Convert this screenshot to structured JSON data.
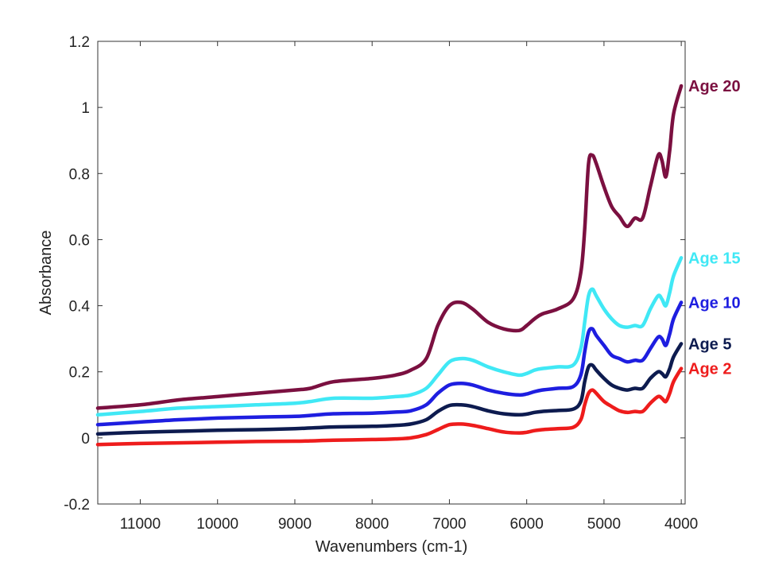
{
  "chart_data": {
    "type": "line",
    "title": "",
    "xlabel": "Wavenumbers (cm-1)",
    "ylabel": "Absorbance",
    "xlim": [
      11550,
      3950
    ],
    "ylim": [
      -0.2,
      1.2
    ],
    "x_reversed": true,
    "grid": false,
    "legend": "direct labels at right end of each line",
    "xticks": [
      11000,
      10000,
      9000,
      8000,
      7000,
      6000,
      5000,
      4000
    ],
    "yticks": [
      -0.2,
      0,
      0.2,
      0.4,
      0.6,
      0.8,
      1,
      1.2
    ],
    "xtick_labels": [
      "11000",
      "10000",
      "9000",
      "8000",
      "7000",
      "6000",
      "5000",
      "4000"
    ],
    "ytick_labels": [
      "-0.2",
      "0",
      "0.2",
      "0.4",
      "0.6",
      "0.8",
      "1",
      "1.2"
    ],
    "x": [
      11550,
      11000,
      10500,
      10000,
      9500,
      9000,
      8800,
      8500,
      8000,
      7700,
      7500,
      7300,
      7150,
      7000,
      6850,
      6700,
      6500,
      6300,
      6100,
      6000,
      5900,
      5800,
      5600,
      5400,
      5300,
      5250,
      5200,
      5150,
      5100,
      5000,
      4900,
      4800,
      4700,
      4600,
      4500,
      4400,
      4300,
      4250,
      4200,
      4150,
      4100,
      4000
    ],
    "series": [
      {
        "name": "Age 20",
        "color": "#7b1040",
        "values": [
          0.09,
          0.1,
          0.115,
          0.125,
          0.135,
          0.145,
          0.15,
          0.17,
          0.18,
          0.19,
          0.205,
          0.24,
          0.34,
          0.4,
          0.41,
          0.39,
          0.35,
          0.33,
          0.325,
          0.34,
          0.36,
          0.375,
          0.39,
          0.42,
          0.5,
          0.63,
          0.83,
          0.855,
          0.83,
          0.76,
          0.7,
          0.67,
          0.64,
          0.665,
          0.665,
          0.76,
          0.855,
          0.84,
          0.79,
          0.87,
          0.98,
          1.065
        ]
      },
      {
        "name": "Age 15",
        "color": "#40e8f5",
        "values": [
          0.07,
          0.08,
          0.09,
          0.095,
          0.1,
          0.105,
          0.11,
          0.12,
          0.12,
          0.125,
          0.13,
          0.15,
          0.19,
          0.23,
          0.24,
          0.235,
          0.215,
          0.2,
          0.19,
          0.195,
          0.205,
          0.21,
          0.215,
          0.22,
          0.27,
          0.35,
          0.43,
          0.45,
          0.43,
          0.39,
          0.36,
          0.34,
          0.335,
          0.34,
          0.34,
          0.39,
          0.43,
          0.42,
          0.4,
          0.44,
          0.49,
          0.545
        ]
      },
      {
        "name": "Age 10",
        "color": "#1e1ee0",
        "values": [
          0.04,
          0.048,
          0.055,
          0.06,
          0.063,
          0.065,
          0.068,
          0.073,
          0.075,
          0.078,
          0.082,
          0.1,
          0.135,
          0.16,
          0.165,
          0.16,
          0.145,
          0.135,
          0.13,
          0.133,
          0.14,
          0.145,
          0.15,
          0.155,
          0.19,
          0.26,
          0.32,
          0.33,
          0.31,
          0.28,
          0.25,
          0.24,
          0.23,
          0.235,
          0.235,
          0.27,
          0.305,
          0.3,
          0.28,
          0.315,
          0.36,
          0.41
        ]
      },
      {
        "name": "Age 5",
        "color": "#0d1b4f",
        "values": [
          0.012,
          0.017,
          0.02,
          0.023,
          0.025,
          0.028,
          0.03,
          0.033,
          0.035,
          0.038,
          0.042,
          0.055,
          0.08,
          0.098,
          0.1,
          0.095,
          0.082,
          0.073,
          0.07,
          0.072,
          0.077,
          0.08,
          0.083,
          0.087,
          0.11,
          0.17,
          0.215,
          0.22,
          0.205,
          0.18,
          0.16,
          0.15,
          0.145,
          0.15,
          0.15,
          0.18,
          0.2,
          0.195,
          0.185,
          0.21,
          0.245,
          0.285
        ]
      },
      {
        "name": "Age 2",
        "color": "#ee1c1c",
        "values": [
          -0.02,
          -0.017,
          -0.015,
          -0.013,
          -0.011,
          -0.01,
          -0.009,
          -0.007,
          -0.005,
          -0.003,
          0.0,
          0.01,
          0.025,
          0.04,
          0.042,
          0.038,
          0.028,
          0.018,
          0.015,
          0.017,
          0.022,
          0.025,
          0.028,
          0.032,
          0.055,
          0.1,
          0.135,
          0.145,
          0.135,
          0.11,
          0.095,
          0.082,
          0.077,
          0.08,
          0.08,
          0.105,
          0.125,
          0.12,
          0.11,
          0.135,
          0.17,
          0.21
        ]
      }
    ]
  }
}
